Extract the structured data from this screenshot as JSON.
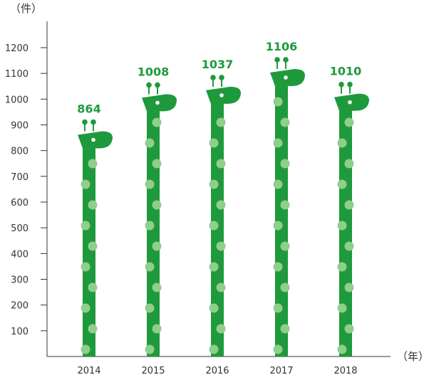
{
  "chart_data": {
    "type": "bar",
    "title": "",
    "y_unit": "（件）",
    "x_unit": "（年）",
    "categories": [
      "2014",
      "2015",
      "2016",
      "2017",
      "2018"
    ],
    "values": [
      864,
      1008,
      1037,
      1106,
      1010
    ],
    "ylim": [
      0,
      1300
    ],
    "yticks": [
      100,
      200,
      300,
      400,
      500,
      600,
      700,
      800,
      900,
      1000,
      1100,
      1200
    ],
    "grid": false,
    "legend": "none",
    "colors": {
      "bar": "#1e9a3c",
      "spots": "#8fcf8a",
      "label": "#1e9a3c",
      "axis": "#333333"
    }
  }
}
